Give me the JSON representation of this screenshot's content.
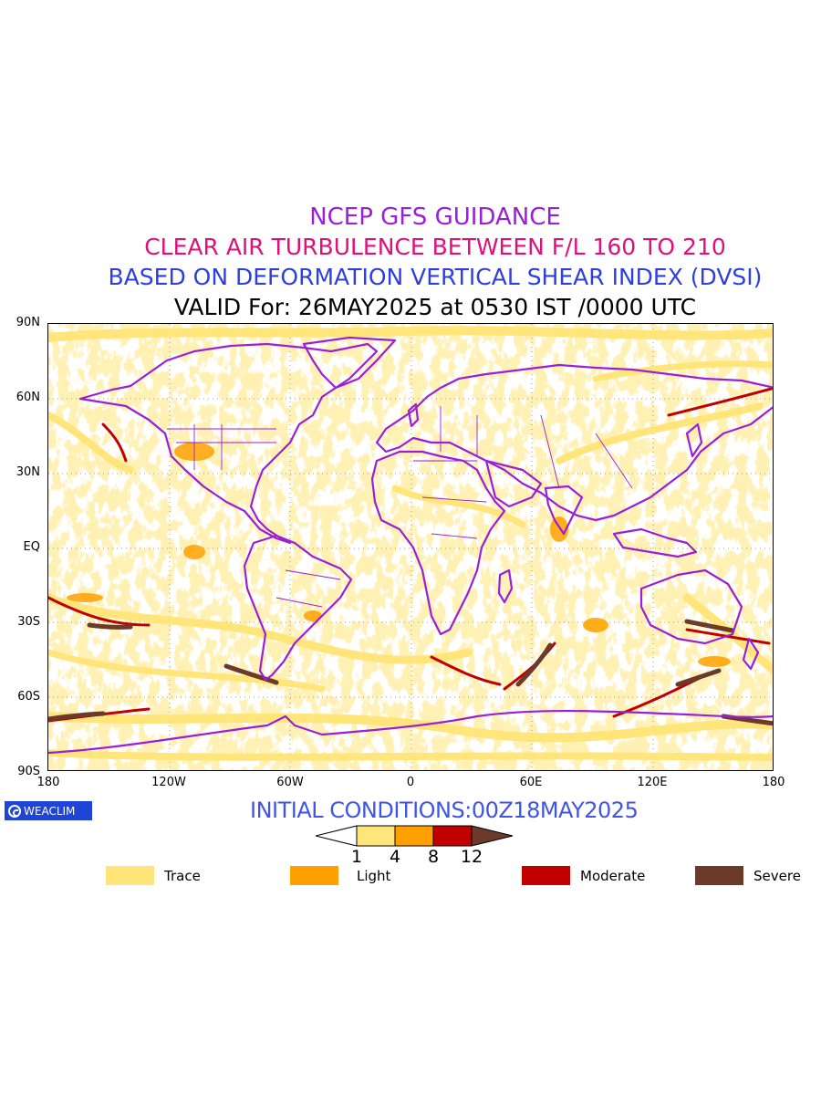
{
  "titles": {
    "line1": "NCEP GFS GUIDANCE",
    "line2": "CLEAR AIR TURBULENCE BETWEEN F/L 160 TO 210",
    "line3": "BASED ON DEFORMATION VERTICAL SHEAR INDEX (DVSI)",
    "line4": "VALID For: 26MAY2025 at 0530 IST /0000 UTC"
  },
  "axes": {
    "lat_labels": [
      "90N",
      "60N",
      "30N",
      "EQ",
      "30S",
      "60S",
      "90S"
    ],
    "lon_labels": [
      "180",
      "120W",
      "60W",
      "0",
      "60E",
      "120E",
      "180"
    ]
  },
  "brand": {
    "label": "WEACLIM",
    "color": "#1f44d8"
  },
  "initial_conditions": "INITIAL CONDITIONS:00Z18MAY2025",
  "colorbar": {
    "ticks": [
      "1",
      "4",
      "8",
      "12"
    ],
    "colors": [
      "#ffffff",
      "#ffe57a",
      "#ffa000",
      "#c00000",
      "#6b3a2a"
    ]
  },
  "legend": [
    {
      "label": "Trace",
      "color": "#ffe57a"
    },
    {
      "label": "Light",
      "color": "#ffa000"
    },
    {
      "label": "Moderate",
      "color": "#c00000"
    },
    {
      "label": "Severe",
      "color": "#6b3a2a"
    }
  ],
  "map": {
    "coastline_color": "#9a1fd6",
    "grid": true,
    "projection": "cylindrical equidistant"
  }
}
